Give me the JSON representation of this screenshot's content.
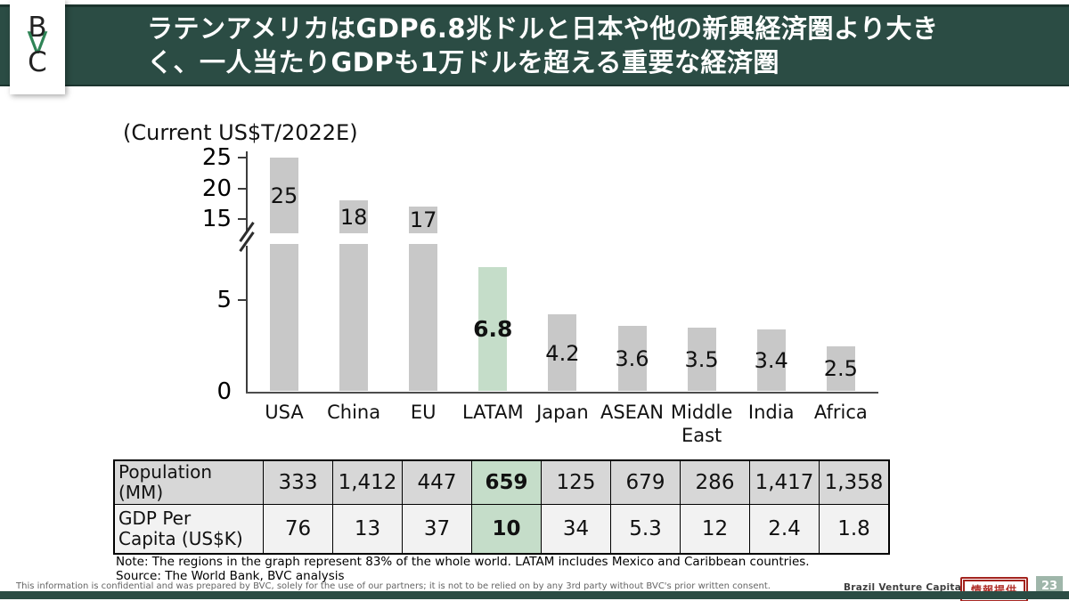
{
  "header": {
    "title_line1": "ラテンアメリカはGDP6.8兆ドルと日本や他の新興経済圏より大き",
    "title_line2": "く、一人当たりGDPも1万ドルを超える重要な経済圏",
    "logo_text": [
      "B",
      "V",
      "C"
    ]
  },
  "chart_data": {
    "type": "bar",
    "title": "(Current US$T/2022E)",
    "categories": [
      "USA",
      "China",
      "EU",
      "LATAM",
      "Japan",
      "ASEAN",
      "Middle East",
      "India",
      "Africa"
    ],
    "values": [
      25,
      18,
      17,
      6.8,
      4.2,
      3.6,
      3.5,
      3.4,
      2.5
    ],
    "labels": [
      "25",
      "18",
      "17",
      "6.8",
      "4.2",
      "3.6",
      "3.5",
      "3.4",
      "2.5"
    ],
    "highlight_index": 3,
    "highlight_category": "LATAM",
    "y_ticks": [
      25,
      20,
      15,
      5,
      0
    ],
    "ylim": [
      0,
      25
    ],
    "broken_axis": true,
    "break_between": [
      8,
      15
    ],
    "grid": false,
    "legend": false,
    "bar_color": "#c8c8c8",
    "highlight_color": "#c5ddc9"
  },
  "table": {
    "highlight_column": 3,
    "rows": [
      {
        "header": "Population\n(MM)",
        "values": [
          "333",
          "1,412",
          "447",
          "659",
          "125",
          "679",
          "286",
          "1,417",
          "1,358"
        ]
      },
      {
        "header": "GDP Per\nCapita (US$K)",
        "values": [
          "76",
          "13",
          "37",
          "10",
          "34",
          "5.3",
          "12",
          "2.4",
          "1.8"
        ]
      }
    ]
  },
  "notes": {
    "note": "Note: The regions in the graph represent 83% of the whole world. LATAM includes Mexico and Caribbean countries.",
    "source": "Source: The World Bank, BVC analysis"
  },
  "footer": {
    "disclaimer": "This information is confidential and was prepared by BVC, solely for the use of our partners; it is not to be relied on by any 3rd party without BVC's prior written consent.",
    "company": "Brazil Venture Capital",
    "info_badge": "情報提供",
    "page_number": "23"
  },
  "colors": {
    "header_bg": "#2b4c44",
    "bar_gray": "#c8c8c8",
    "highlight_green": "#c5ddc9",
    "badge_red": "#a3231e",
    "page_badge_bg": "#9fb6aa",
    "bottom_bar": "#2b4c44"
  }
}
